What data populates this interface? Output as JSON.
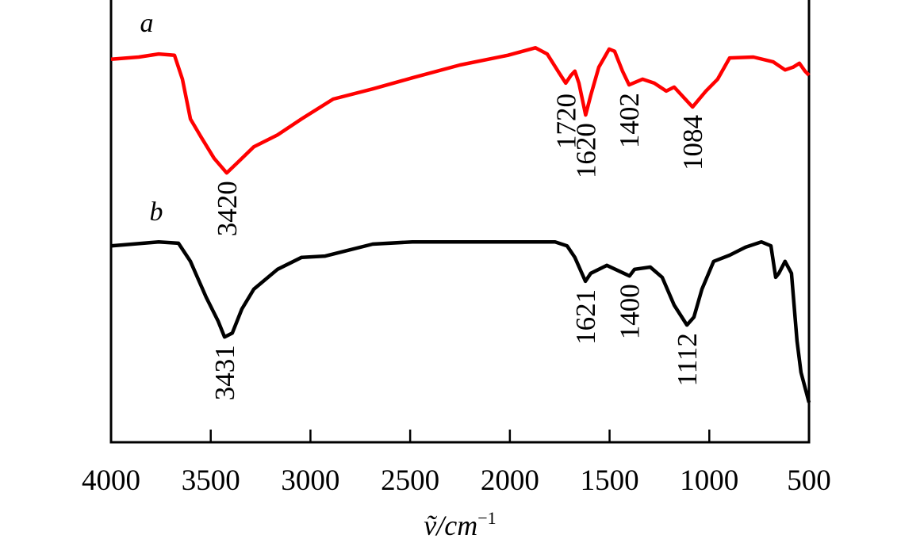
{
  "chart_data": {
    "type": "line",
    "title": "",
    "xlabel": "ṽ/cm",
    "xlabel_sup": "−1",
    "ylabel": "",
    "xlim": [
      4000,
      500
    ],
    "x_reversed": true,
    "xticks": [
      4000,
      3500,
      3000,
      2500,
      2000,
      1500,
      1000,
      500
    ],
    "y_ticks_shown": false,
    "grid": false,
    "series": [
      {
        "name": "a",
        "color": "#ff0000",
        "points": [
          [
            4000,
            86.6
          ],
          [
            3861,
            87.1
          ],
          [
            3761,
            87.8
          ],
          [
            3682,
            87.5
          ],
          [
            3642,
            82.1
          ],
          [
            3602,
            73.1
          ],
          [
            3543,
            68.6
          ],
          [
            3483,
            64.2
          ],
          [
            3420,
            60.9
          ],
          [
            3364,
            63.3
          ],
          [
            3284,
            66.8
          ],
          [
            3165,
            69.5
          ],
          [
            3045,
            73.1
          ],
          [
            2886,
            77.6
          ],
          [
            2688,
            79.9
          ],
          [
            2489,
            82.4
          ],
          [
            2250,
            85.3
          ],
          [
            2011,
            87.5
          ],
          [
            1872,
            89.2
          ],
          [
            1813,
            87.8
          ],
          [
            1753,
            83.5
          ],
          [
            1720,
            81.2
          ],
          [
            1693,
            83.0
          ],
          [
            1674,
            83.9
          ],
          [
            1654,
            81.2
          ],
          [
            1620,
            74.0
          ],
          [
            1594,
            78.5
          ],
          [
            1554,
            84.8
          ],
          [
            1502,
            88.9
          ],
          [
            1475,
            88.4
          ],
          [
            1435,
            83.9
          ],
          [
            1402,
            80.8
          ],
          [
            1335,
            82.1
          ],
          [
            1276,
            81.2
          ],
          [
            1216,
            79.4
          ],
          [
            1176,
            80.3
          ],
          [
            1084,
            75.8
          ],
          [
            1017,
            79.4
          ],
          [
            958,
            82.1
          ],
          [
            898,
            86.9
          ],
          [
            779,
            87.1
          ],
          [
            679,
            86.0
          ],
          [
            620,
            84.2
          ],
          [
            580,
            84.8
          ],
          [
            548,
            85.7
          ],
          [
            520,
            83.9
          ],
          [
            500,
            83.0
          ]
        ]
      },
      {
        "name": "b",
        "color": "#000000",
        "points": [
          [
            4000,
            44.4
          ],
          [
            3761,
            45.3
          ],
          [
            3662,
            45.0
          ],
          [
            3602,
            40.9
          ],
          [
            3523,
            32.8
          ],
          [
            3463,
            27.4
          ],
          [
            3431,
            23.8
          ],
          [
            3392,
            24.7
          ],
          [
            3344,
            30.1
          ],
          [
            3284,
            34.6
          ],
          [
            3165,
            39.1
          ],
          [
            3045,
            41.8
          ],
          [
            2926,
            42.1
          ],
          [
            2847,
            43.0
          ],
          [
            2688,
            44.8
          ],
          [
            2489,
            45.3
          ],
          [
            2171,
            45.3
          ],
          [
            1773,
            45.3
          ],
          [
            1713,
            44.4
          ],
          [
            1674,
            41.8
          ],
          [
            1621,
            36.4
          ],
          [
            1594,
            38.2
          ],
          [
            1514,
            40.0
          ],
          [
            1400,
            37.6
          ],
          [
            1375,
            39.1
          ],
          [
            1296,
            39.6
          ],
          [
            1236,
            37.3
          ],
          [
            1176,
            31.0
          ],
          [
            1112,
            26.5
          ],
          [
            1077,
            28.3
          ],
          [
            1037,
            34.6
          ],
          [
            978,
            40.9
          ],
          [
            898,
            42.3
          ],
          [
            818,
            44.1
          ],
          [
            739,
            45.3
          ],
          [
            691,
            44.4
          ],
          [
            667,
            37.3
          ],
          [
            651,
            38.2
          ],
          [
            620,
            40.9
          ],
          [
            588,
            38.2
          ],
          [
            560,
            22.9
          ],
          [
            540,
            15.8
          ],
          [
            500,
            9.0
          ]
        ]
      }
    ],
    "annotations": [
      {
        "series": "a",
        "text": "3420",
        "x": 3420
      },
      {
        "series": "a",
        "text": "1720",
        "x": 1720
      },
      {
        "series": "a",
        "text": "1620",
        "x": 1620
      },
      {
        "series": "a",
        "text": "1402",
        "x": 1402
      },
      {
        "series": "a",
        "text": "1084",
        "x": 1084
      },
      {
        "series": "b",
        "text": "3431",
        "x": 3431
      },
      {
        "series": "b",
        "text": "1621",
        "x": 1621
      },
      {
        "series": "b",
        "text": "1400",
        "x": 1400
      },
      {
        "series": "b",
        "text": "1112",
        "x": 1112
      }
    ]
  }
}
